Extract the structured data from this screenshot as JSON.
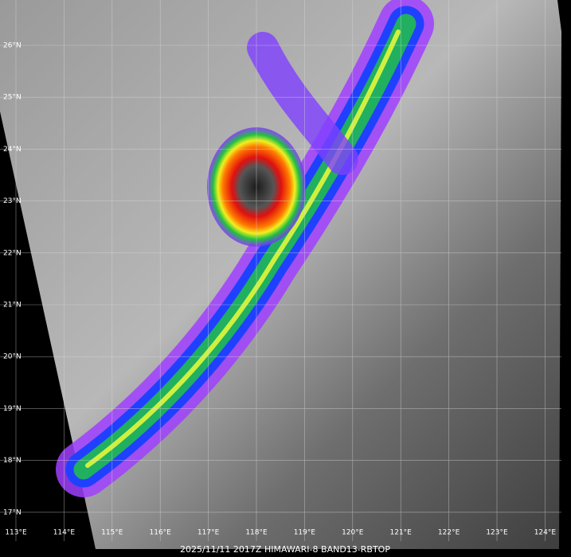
{
  "lat_labels": [
    "26°N",
    "25°N",
    "24°N",
    "23°N",
    "22°N",
    "21°N",
    "20°N",
    "19°N",
    "18°N",
    "17°N"
  ],
  "lon_labels": [
    "113°E",
    "114°E",
    "115°E",
    "116°E",
    "117°E",
    "118°E",
    "119°E",
    "120°E",
    "121°E",
    "122°E",
    "123°E",
    "124°E"
  ],
  "caption": "2025/11/11 2017Z HIMAWARI-8 BAND13-RBTOP"
}
